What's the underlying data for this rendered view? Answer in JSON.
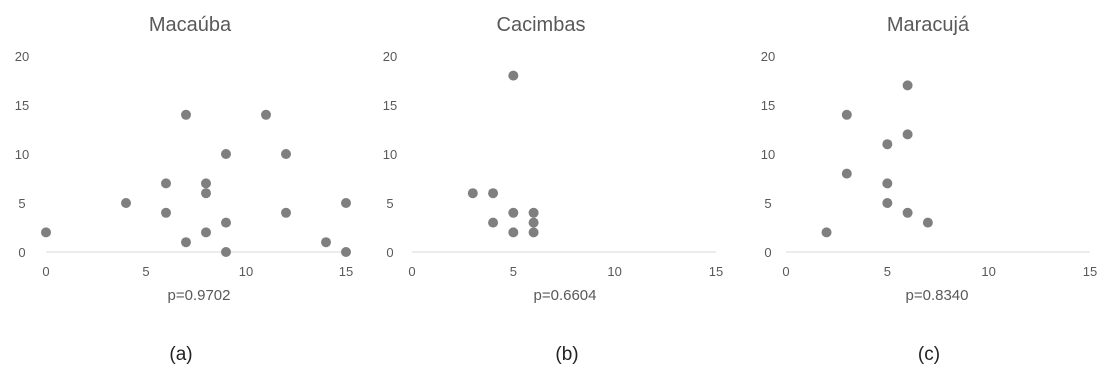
{
  "colors": {
    "point": "#7f7f7f",
    "axis": "#d9d9d9",
    "text": "#595959",
    "caption": "#222222"
  },
  "chart_data": [
    {
      "type": "scatter",
      "title": "Macaúba",
      "annotation": "p=0.9702",
      "caption": "(a)",
      "xlim": [
        0,
        15
      ],
      "ylim": [
        0,
        20
      ],
      "xticks": [
        0,
        5,
        10,
        15
      ],
      "yticks": [
        0,
        5,
        10,
        15,
        20
      ],
      "grid": false,
      "points": [
        {
          "x": 0,
          "y": 2
        },
        {
          "x": 4,
          "y": 5
        },
        {
          "x": 6,
          "y": 7
        },
        {
          "x": 6,
          "y": 4
        },
        {
          "x": 7,
          "y": 14
        },
        {
          "x": 7,
          "y": 1
        },
        {
          "x": 8,
          "y": 7
        },
        {
          "x": 8,
          "y": 6
        },
        {
          "x": 8,
          "y": 2
        },
        {
          "x": 9,
          "y": 10
        },
        {
          "x": 9,
          "y": 3
        },
        {
          "x": 9,
          "y": 0
        },
        {
          "x": 11,
          "y": 14
        },
        {
          "x": 12,
          "y": 10
        },
        {
          "x": 12,
          "y": 4
        },
        {
          "x": 14,
          "y": 1
        },
        {
          "x": 15,
          "y": 5
        },
        {
          "x": 15,
          "y": 0
        }
      ]
    },
    {
      "type": "scatter",
      "title": "Cacimbas",
      "annotation": "p=0.6604",
      "caption": "(b)",
      "xlim": [
        0,
        15
      ],
      "ylim": [
        0,
        20
      ],
      "xticks": [
        0,
        5,
        10,
        15
      ],
      "yticks": [
        0,
        5,
        10,
        15,
        20
      ],
      "grid": false,
      "points": [
        {
          "x": 3,
          "y": 6
        },
        {
          "x": 4,
          "y": 6
        },
        {
          "x": 4,
          "y": 3
        },
        {
          "x": 5,
          "y": 18
        },
        {
          "x": 5,
          "y": 4
        },
        {
          "x": 5,
          "y": 2
        },
        {
          "x": 6,
          "y": 4
        },
        {
          "x": 6,
          "y": 3
        },
        {
          "x": 6,
          "y": 2
        }
      ]
    },
    {
      "type": "scatter",
      "title": "Maracujá",
      "annotation": "p=0.8340",
      "caption": "(c)",
      "xlim": [
        0,
        15
      ],
      "ylim": [
        0,
        20
      ],
      "xticks": [
        0,
        5,
        10,
        15
      ],
      "yticks": [
        0,
        5,
        10,
        15,
        20
      ],
      "grid": false,
      "points": [
        {
          "x": 2,
          "y": 2
        },
        {
          "x": 3,
          "y": 14
        },
        {
          "x": 3,
          "y": 8
        },
        {
          "x": 5,
          "y": 11
        },
        {
          "x": 5,
          "y": 7
        },
        {
          "x": 5,
          "y": 5
        },
        {
          "x": 6,
          "y": 17
        },
        {
          "x": 6,
          "y": 12
        },
        {
          "x": 6,
          "y": 4
        },
        {
          "x": 7,
          "y": 3
        }
      ]
    }
  ]
}
